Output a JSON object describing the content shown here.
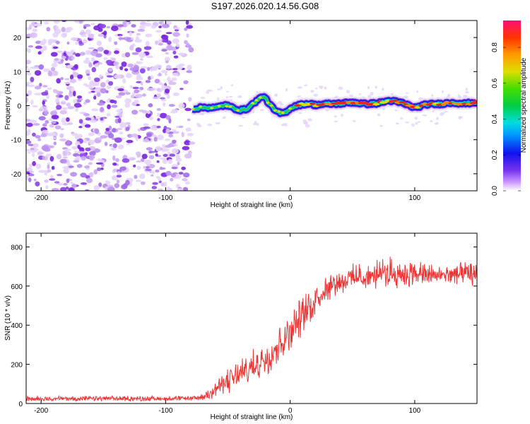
{
  "title": "S197.2026.020.14.56.G08",
  "chart_data": [
    {
      "type": "heatmap",
      "panel": "spectrogram",
      "xlabel": "Height of straight line (km)",
      "ylabel": "Frequency (Hz)",
      "xlim": [
        -212,
        150
      ],
      "ylim": [
        -25,
        25
      ],
      "xticks": [
        -200,
        -100,
        0,
        100
      ],
      "yticks": [
        -20,
        -10,
        0,
        10,
        20
      ],
      "noise_region_x": [
        -212,
        -78
      ],
      "signal_track": {
        "x": [
          -78,
          -70,
          -60,
          -52,
          -45,
          -40,
          -35,
          -30,
          -25,
          -21,
          -17,
          -12,
          -8,
          -4,
          0,
          5,
          10,
          15,
          20,
          30,
          40,
          50,
          60,
          70,
          80,
          90,
          100,
          110,
          120,
          130,
          140,
          150
        ],
        "frequency": [
          -1,
          -0.5,
          -0.6,
          0.2,
          -0.8,
          -1.3,
          -1.0,
          0.5,
          2.0,
          2.8,
          0.6,
          -1.5,
          -2.2,
          -2.0,
          -0.8,
          0.0,
          0.4,
          0.6,
          0.2,
          0.5,
          0.6,
          1.0,
          0.5,
          0.7,
          1.5,
          0.8,
          -0.6,
          0.4,
          0.5,
          0.9,
          0.6,
          1.0
        ]
      },
      "colorbar": {
        "label": "Normalized spectral amplitude",
        "ticks": [
          0.0,
          0.2,
          0.4,
          0.6,
          0.8
        ],
        "tick_labels": [
          "0.0",
          "0.2",
          "0.4",
          "0.6",
          "0.8"
        ],
        "range": [
          0,
          0.95
        ]
      }
    },
    {
      "type": "line",
      "panel": "snr",
      "xlabel": "Height of straight line (km)",
      "ylabel": "SNR (10 * v/v)",
      "xlim": [
        -212,
        150
      ],
      "ylim": [
        0,
        870
      ],
      "xticks": [
        -200,
        -100,
        0,
        100
      ],
      "yticks": [
        0,
        200,
        400,
        600,
        800
      ],
      "color": "#ee3333",
      "series": [
        {
          "name": "SNR",
          "envelope_x": [
            -212,
            -150,
            -100,
            -80,
            -70,
            -60,
            -50,
            -40,
            -30,
            -20,
            -10,
            0,
            10,
            20,
            30,
            40,
            50,
            60,
            70,
            80,
            90,
            100,
            110,
            120,
            130,
            140,
            150
          ],
          "envelope_low": [
            10,
            10,
            10,
            12,
            15,
            25,
            40,
            60,
            90,
            130,
            180,
            250,
            340,
            430,
            520,
            560,
            560,
            570,
            570,
            580,
            580,
            590,
            590,
            590,
            600,
            590,
            600
          ],
          "envelope_high": [
            40,
            40,
            40,
            40,
            50,
            120,
            190,
            240,
            280,
            330,
            410,
            490,
            560,
            630,
            680,
            690,
            720,
            720,
            740,
            760,
            740,
            740,
            720,
            720,
            720,
            730,
            720
          ]
        }
      ]
    }
  ]
}
